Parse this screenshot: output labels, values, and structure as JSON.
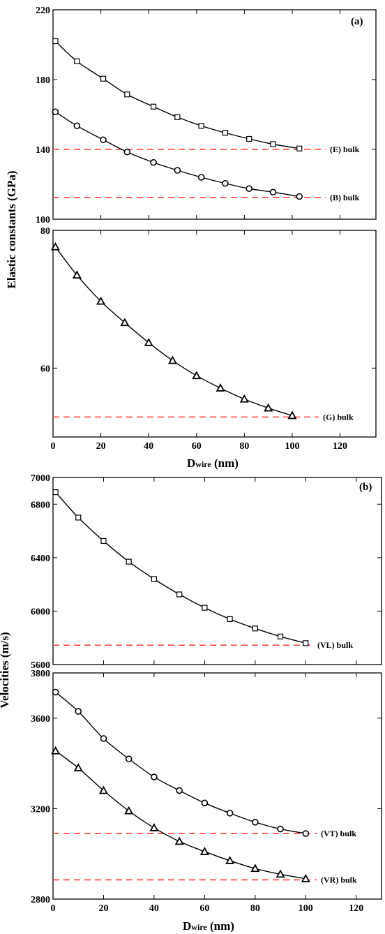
{
  "figure_a": {
    "ylabel": "Elastic constants (GPa)",
    "xlabel_main": "D",
    "xlabel_sub": "wire",
    "xlabel_unit": " (nm)",
    "panel_label": "(a)",
    "xticks": [
      "0",
      "20",
      "40",
      "60",
      "80",
      "100",
      "120"
    ],
    "top_yticks": [
      "100",
      "140",
      "180",
      "220"
    ],
    "bottom_yticks": [
      "60",
      "80"
    ]
  },
  "figure_b": {
    "ylabel": "Velocities (m/s)",
    "xlabel_main": "D",
    "xlabel_sub": "wire",
    "xlabel_unit": " (nm)",
    "panel_label": "(b)",
    "xticks": [
      "0",
      "20",
      "40",
      "60",
      "80",
      "100",
      "120"
    ],
    "top_yticks": [
      "5600",
      "6000",
      "6400",
      "6800",
      "7000"
    ],
    "bottom_yticks": [
      "2800",
      "3200",
      "3600",
      "3800"
    ]
  },
  "chart_data": [
    {
      "type": "line",
      "panel": "(a) upper",
      "xlim": [
        0,
        135
      ],
      "ylim": [
        100,
        220
      ],
      "series": [
        {
          "name": "E",
          "marker": "square",
          "x": [
            1,
            10,
            21,
            31,
            42,
            52,
            62,
            72,
            82,
            92,
            103
          ],
          "y": [
            202,
            190.5,
            180.5,
            171.5,
            164.5,
            158.5,
            153.5,
            149.5,
            146,
            143,
            140.5
          ]
        },
        {
          "name": "B",
          "marker": "circle",
          "x": [
            1,
            10,
            21,
            31,
            42,
            52,
            62,
            72,
            82,
            92,
            103
          ],
          "y": [
            161.5,
            153.5,
            145.5,
            138.5,
            132.5,
            128,
            124,
            120.5,
            117.5,
            115.5,
            113
          ]
        }
      ],
      "reference_lines": [
        {
          "label": "(E) bulk",
          "y": 140,
          "color": "#ff3b3b"
        },
        {
          "label": "(B) bulk",
          "y": 112.5,
          "color": "#ff3b3b"
        }
      ],
      "grid": false
    },
    {
      "type": "line",
      "panel": "(a) lower",
      "xlim": [
        0,
        135
      ],
      "ylim": [
        50,
        80
      ],
      "series": [
        {
          "name": "G",
          "marker": "triangle",
          "x": [
            1,
            10,
            20,
            30,
            40,
            50,
            60,
            70,
            80,
            90,
            100
          ],
          "y": [
            77.6,
            73.5,
            69.7,
            66.6,
            63.7,
            61.1,
            58.9,
            57.1,
            55.5,
            54.2,
            53.1
          ]
        }
      ],
      "reference_lines": [
        {
          "label": "(G) bulk",
          "y": 52.9,
          "color": "#ff3b3b"
        }
      ],
      "grid": false
    },
    {
      "type": "line",
      "panel": "(b) upper",
      "xlim": [
        0,
        130
      ],
      "ylim": [
        5600,
        7000
      ],
      "series": [
        {
          "name": "V_L",
          "marker": "square",
          "x": [
            1,
            10,
            20,
            30,
            40,
            50,
            60,
            70,
            80,
            90,
            100
          ],
          "y": [
            6890,
            6700,
            6525,
            6370,
            6240,
            6125,
            6025,
            5940,
            5870,
            5810,
            5760
          ]
        }
      ],
      "reference_lines": [
        {
          "label": "(VL) bulk",
          "y": 5745,
          "color": "#ff3b3b"
        }
      ],
      "grid": false
    },
    {
      "type": "line",
      "panel": "(b) lower",
      "xlim": [
        0,
        130
      ],
      "ylim": [
        2800,
        3800
      ],
      "series": [
        {
          "name": "V_T",
          "marker": "circle",
          "x": [
            1,
            10,
            20,
            30,
            40,
            50,
            60,
            70,
            80,
            90,
            100
          ],
          "y": [
            3715,
            3630,
            3510,
            3420,
            3340,
            3280,
            3225,
            3180,
            3140,
            3110,
            3090
          ]
        },
        {
          "name": "V_R",
          "marker": "triangle",
          "x": [
            1,
            10,
            20,
            30,
            40,
            50,
            60,
            70,
            80,
            90,
            100
          ],
          "y": [
            3455,
            3380,
            3280,
            3190,
            3115,
            3055,
            3010,
            2970,
            2935,
            2910,
            2890
          ]
        }
      ],
      "reference_lines": [
        {
          "label": "(VT) bulk",
          "y": 3090,
          "color": "#ff3b3b"
        },
        {
          "label": "(VR) bulk",
          "y": 2885,
          "color": "#ff3b3b"
        }
      ],
      "grid": false
    }
  ]
}
